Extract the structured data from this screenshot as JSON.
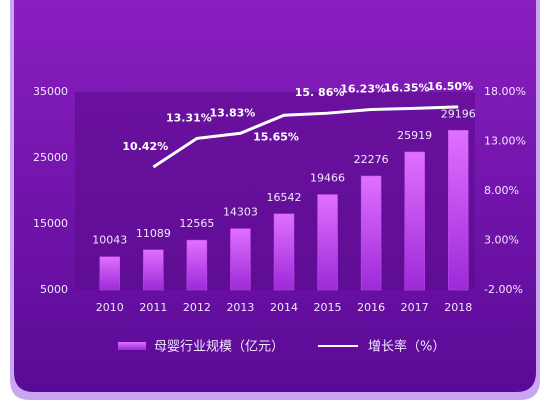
{
  "chart_data": {
    "type": "bar",
    "categories": [
      "2010",
      "2011",
      "2012",
      "2013",
      "2014",
      "2015",
      "2016",
      "2017",
      "2018"
    ],
    "series": [
      {
        "name": "母婴行业规模（亿元）",
        "type": "bar",
        "color": "#c84af0",
        "values": [
          10043,
          11089,
          12565,
          14303,
          16542,
          19466,
          22276,
          25919,
          29196
        ]
      },
      {
        "name": "增长率（%）",
        "type": "line",
        "axis": "y2",
        "color": "#ffffff",
        "values": [
          null,
          10.42,
          13.31,
          13.83,
          15.65,
          15.86,
          16.23,
          16.35,
          16.5
        ],
        "value_labels": [
          null,
          "10.42%",
          "13.31%",
          "13.83%",
          "15.65%",
          "15. 86%",
          "16.23%",
          "16.35%",
          "16.50%"
        ]
      }
    ],
    "ylim": [
      5000,
      35000
    ],
    "yticks": [
      5000,
      15000,
      25000,
      35000
    ],
    "y2lim": [
      -2,
      18
    ],
    "y2ticks": [
      {
        "value": -2,
        "label": "-2.00%"
      },
      {
        "value": 3,
        "label": "3.00%"
      },
      {
        "value": 8,
        "label": "8.00%"
      },
      {
        "value": 13,
        "label": "13.00%"
      },
      {
        "value": 18,
        "label": "18.00%"
      }
    ]
  }
}
